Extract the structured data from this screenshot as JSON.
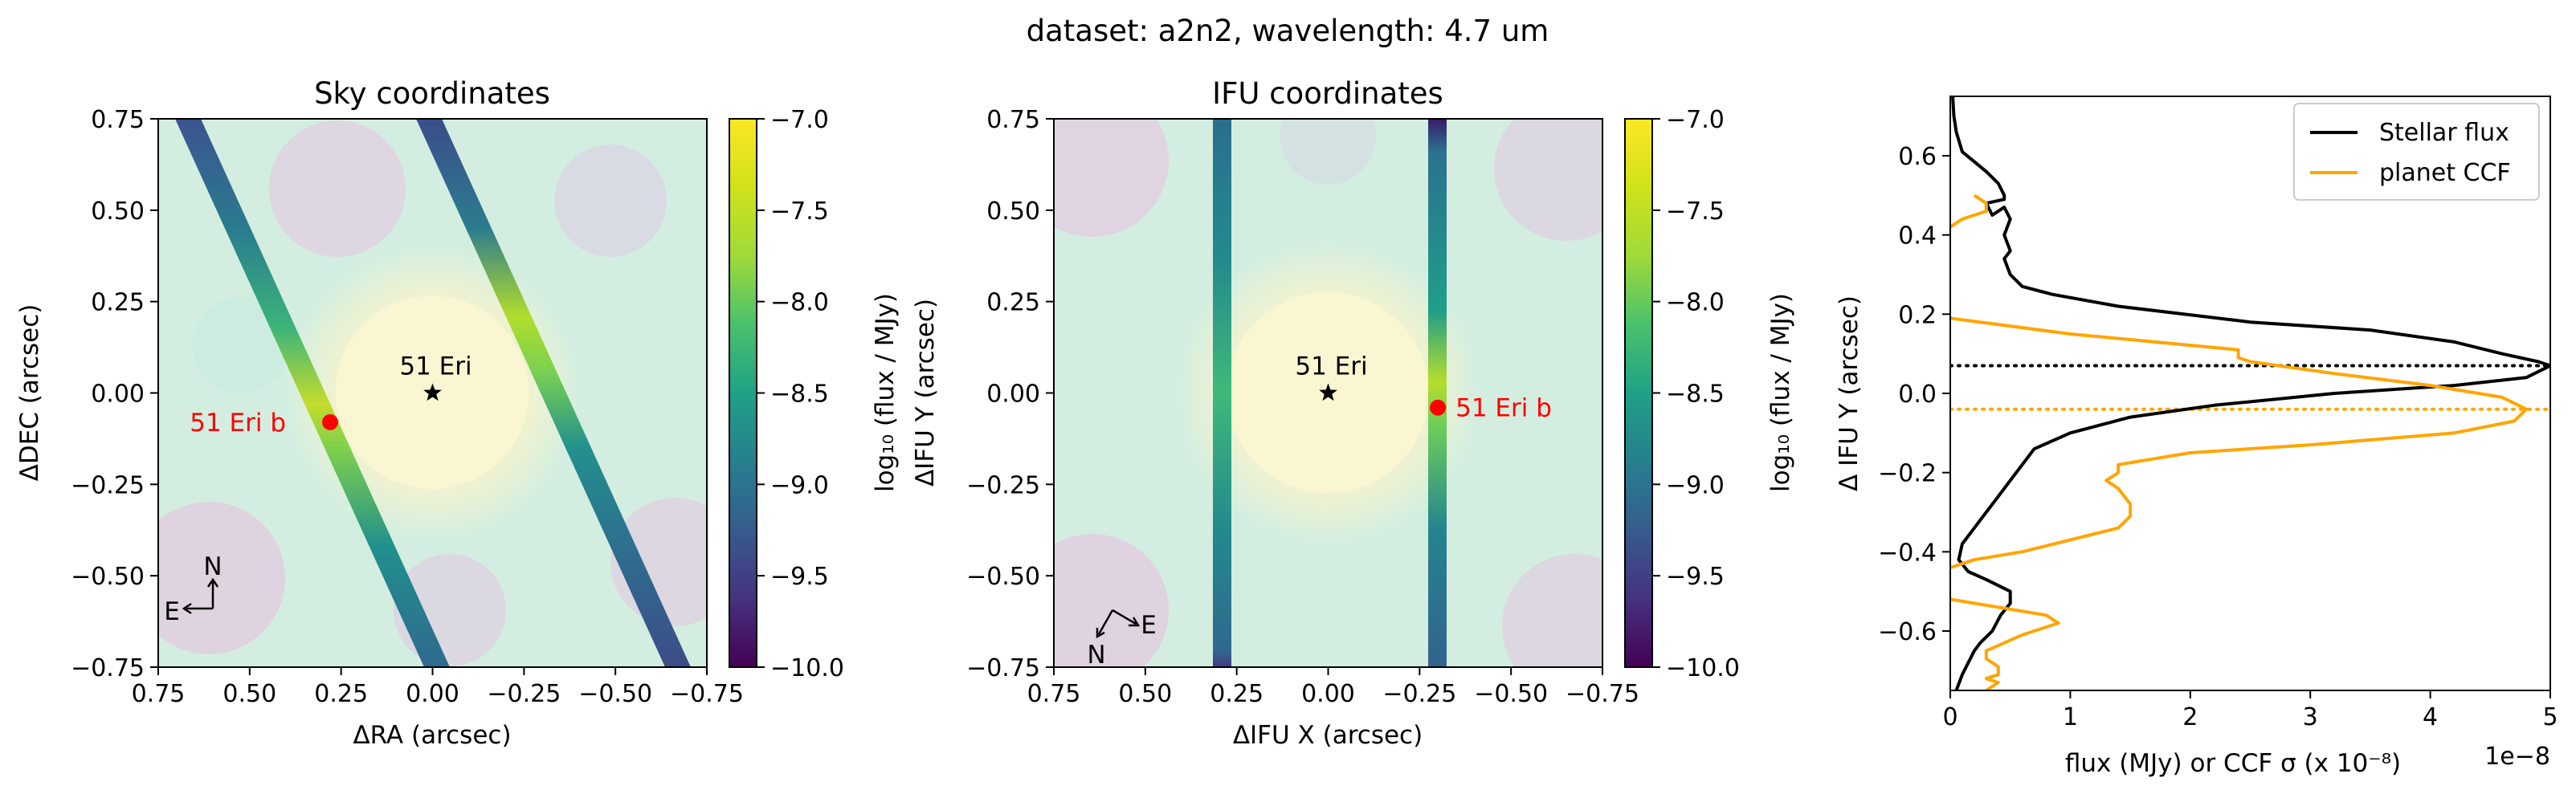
{
  "suptitle": "dataset: a2n2, wavelength: 4.7 um",
  "chart_data": [
    {
      "type": "heatmap",
      "title": "Sky coordinates",
      "xlabel": "ΔRA (arcsec)",
      "ylabel": "ΔDEC (arcsec)",
      "xlim": [
        0.75,
        -0.75
      ],
      "ylim": [
        -0.75,
        0.75
      ],
      "xticks": [
        0.75,
        0.5,
        0.25,
        0.0,
        -0.25,
        -0.5,
        -0.75
      ],
      "xtick_labels": [
        "0.75",
        "0.50",
        "0.25",
        "0.00",
        "−0.25",
        "−0.50",
        "−0.75"
      ],
      "yticks": [
        0.75,
        0.5,
        0.25,
        0.0,
        -0.25,
        -0.5,
        -0.75
      ],
      "ytick_labels": [
        "0.75",
        "0.50",
        "0.25",
        "0.00",
        "−0.25",
        "−0.50",
        "−0.75"
      ],
      "star": {
        "label": "51 Eri",
        "x": 0.0,
        "y": 0.0
      },
      "planet": {
        "label": "51 Eri b",
        "x": 0.28,
        "y": -0.08
      },
      "compass": {
        "north": "N",
        "east": "E"
      },
      "colorbar": {
        "label": "log₁₀ (flux / MJy)",
        "range": [
          -10.0,
          -7.0
        ],
        "ticks": [
          -7.0,
          -7.5,
          -8.0,
          -8.5,
          -9.0,
          -9.5,
          -10.0
        ],
        "tick_labels": [
          "−7.0",
          "−7.5",
          "−8.0",
          "−8.5",
          "−9.0",
          "−9.5",
          "−10.0"
        ]
      }
    },
    {
      "type": "heatmap",
      "title": "IFU coordinates",
      "xlabel": "ΔIFU X (arcsec)",
      "ylabel": "ΔIFU Y (arcsec)",
      "xlim": [
        0.75,
        -0.75
      ],
      "ylim": [
        -0.75,
        0.75
      ],
      "xticks": [
        0.75,
        0.5,
        0.25,
        0.0,
        -0.25,
        -0.5,
        -0.75
      ],
      "xtick_labels": [
        "0.75",
        "0.50",
        "0.25",
        "0.00",
        "−0.25",
        "−0.50",
        "−0.75"
      ],
      "yticks": [
        0.75,
        0.5,
        0.25,
        0.0,
        -0.25,
        -0.5,
        -0.75
      ],
      "ytick_labels": [
        "0.75",
        "0.50",
        "0.25",
        "0.00",
        "−0.25",
        "−0.50",
        "−0.75"
      ],
      "star": {
        "label": "51 Eri",
        "x": 0.0,
        "y": 0.0
      },
      "planet": {
        "label": "51 Eri b",
        "x": -0.3,
        "y": -0.04
      },
      "compass": {
        "north": "N",
        "east": "E"
      },
      "colorbar": {
        "label": "log₁₀ (flux / MJy)",
        "range": [
          -10.0,
          -7.0
        ],
        "ticks": [
          -7.0,
          -7.5,
          -8.0,
          -8.5,
          -9.0,
          -9.5,
          -10.0
        ],
        "tick_labels": [
          "−7.0",
          "−7.5",
          "−8.0",
          "−8.5",
          "−9.0",
          "−9.5",
          "−10.0"
        ]
      }
    },
    {
      "type": "line",
      "title": "",
      "xlabel": "flux (MJy) or CCF σ (x 10⁻⁸)",
      "ylabel": "Δ IFU Y (arcsec)",
      "offset_text": "1e−8",
      "xlim": [
        0,
        5
      ],
      "ylim": [
        -0.75,
        0.75
      ],
      "xticks": [
        0,
        1,
        2,
        3,
        4,
        5
      ],
      "xtick_labels": [
        "0",
        "1",
        "2",
        "3",
        "4",
        "5"
      ],
      "yticks": [
        0.6,
        0.4,
        0.2,
        0.0,
        -0.2,
        -0.4,
        -0.6
      ],
      "ytick_labels": [
        "0.6",
        "0.4",
        "0.2",
        "0.0",
        "−0.2",
        "−0.4",
        "−0.6"
      ],
      "legend_position": "upper-right",
      "series": [
        {
          "name": "Stellar flux",
          "color": "#000000",
          "points": [
            [
              0.02,
              0.75
            ],
            [
              0.03,
              0.7
            ],
            [
              0.05,
              0.66
            ],
            [
              0.1,
              0.61
            ],
            [
              0.3,
              0.56
            ],
            [
              0.4,
              0.53
            ],
            [
              0.45,
              0.5
            ],
            [
              0.45,
              0.49
            ],
            [
              0.3,
              0.48
            ],
            [
              0.35,
              0.45
            ],
            [
              0.45,
              0.47
            ],
            [
              0.5,
              0.44
            ],
            [
              0.45,
              0.4
            ],
            [
              0.5,
              0.36
            ],
            [
              0.45,
              0.34
            ],
            [
              0.5,
              0.3
            ],
            [
              0.6,
              0.27
            ],
            [
              0.85,
              0.25
            ],
            [
              1.4,
              0.22
            ],
            [
              2.5,
              0.18
            ],
            [
              3.5,
              0.16
            ],
            [
              4.2,
              0.13
            ],
            [
              4.6,
              0.1
            ],
            [
              4.9,
              0.08
            ],
            [
              5.0,
              0.07
            ],
            [
              4.8,
              0.04
            ],
            [
              4.2,
              0.02
            ],
            [
              3.2,
              0.0
            ],
            [
              2.2,
              -0.03
            ],
            [
              1.5,
              -0.06
            ],
            [
              1.0,
              -0.1
            ],
            [
              0.7,
              -0.14
            ],
            [
              0.6,
              -0.18
            ],
            [
              0.5,
              -0.22
            ],
            [
              0.4,
              -0.26
            ],
            [
              0.3,
              -0.3
            ],
            [
              0.2,
              -0.34
            ],
            [
              0.1,
              -0.38
            ],
            [
              0.07,
              -0.42
            ],
            [
              0.15,
              -0.45
            ],
            [
              0.3,
              -0.47
            ],
            [
              0.5,
              -0.5
            ],
            [
              0.5,
              -0.53
            ],
            [
              0.42,
              -0.56
            ],
            [
              0.35,
              -0.6
            ],
            [
              0.25,
              -0.63
            ],
            [
              0.2,
              -0.65
            ],
            [
              0.15,
              -0.68
            ],
            [
              0.1,
              -0.71
            ],
            [
              0.05,
              -0.75
            ]
          ]
        },
        {
          "name": "planet CCF",
          "color": "#ffa500",
          "points": [
            [
              0.2,
              0.5
            ],
            [
              0.3,
              0.48
            ],
            [
              0.3,
              0.46
            ],
            [
              0.1,
              0.44
            ],
            [
              0.0,
              0.42
            ],
            [
              null,
              null
            ],
            [
              0.0,
              0.19
            ],
            [
              1.0,
              0.15
            ],
            [
              2.4,
              0.11
            ],
            [
              2.4,
              0.09
            ],
            [
              2.5,
              0.08
            ],
            [
              3.2,
              0.05
            ],
            [
              4.0,
              0.02
            ],
            [
              4.6,
              -0.01
            ],
            [
              4.8,
              -0.04
            ],
            [
              4.7,
              -0.07
            ],
            [
              4.2,
              -0.1
            ],
            [
              3.0,
              -0.13
            ],
            [
              2.0,
              -0.15
            ],
            [
              1.4,
              -0.18
            ],
            [
              1.4,
              -0.2
            ],
            [
              1.3,
              -0.22
            ],
            [
              1.4,
              -0.24
            ],
            [
              1.5,
              -0.28
            ],
            [
              1.5,
              -0.31
            ],
            [
              1.4,
              -0.34
            ],
            [
              1.0,
              -0.37
            ],
            [
              0.6,
              -0.4
            ],
            [
              0.2,
              -0.42
            ],
            [
              0.0,
              -0.44
            ],
            [
              null,
              null
            ],
            [
              0.0,
              -0.52
            ],
            [
              0.8,
              -0.56
            ],
            [
              0.9,
              -0.58
            ],
            [
              0.6,
              -0.61
            ],
            [
              0.3,
              -0.65
            ],
            [
              0.3,
              -0.67
            ],
            [
              0.4,
              -0.69
            ],
            [
              0.4,
              -0.71
            ],
            [
              0.3,
              -0.72
            ],
            [
              0.4,
              -0.73
            ],
            [
              0.3,
              -0.75
            ]
          ]
        }
      ],
      "hlines": [
        {
          "y": 0.07,
          "color": "#000000",
          "style": "dotted"
        },
        {
          "y": -0.04,
          "color": "#ffa500",
          "style": "dotted"
        }
      ]
    }
  ]
}
